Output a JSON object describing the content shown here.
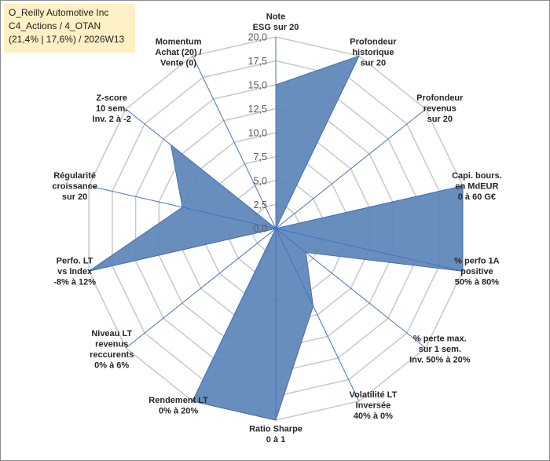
{
  "title_box": {
    "line1": "O_Reilly Automotive Inc",
    "line2": "C4_Actions / 4_OTAN",
    "line3": "(21,4% | 17,6%) / 2026W13"
  },
  "chart_data": {
    "type": "radar",
    "scale": {
      "min": 0,
      "max": 20,
      "step": 2.5
    },
    "ticks": [
      "0,0",
      "2,5",
      "5,0",
      "7,5",
      "10,0",
      "12,5",
      "15,0",
      "17,5",
      "20,0"
    ],
    "axes": [
      {
        "label": [
          "Note",
          "ESG sur 20"
        ],
        "value": 15
      },
      {
        "label": [
          "Profondeur",
          "historique",
          "sur 20"
        ],
        "value": 20
      },
      {
        "label": [
          "Profondeur",
          "revenus",
          "sur 20"
        ],
        "value": 0
      },
      {
        "label": [
          "Capi. bours.",
          "en MdEUR",
          "0 à 60 G€"
        ],
        "value": 20
      },
      {
        "label": [
          "% perfo 1A",
          "positive",
          "50% à 80%"
        ],
        "value": 20
      },
      {
        "label": [
          "% perte max.",
          "sur 1 sem.",
          "Inv. 50% à 20%"
        ],
        "value": 4
      },
      {
        "label": [
          "Volatilité LT",
          "Inversée",
          "40% à 0%"
        ],
        "value": 9
      },
      {
        "label": [
          "Ratio Sharpe",
          "0 à 1"
        ],
        "value": 20
      },
      {
        "label": [
          "Rendement LT",
          "0% à 20%"
        ],
        "value": 20
      },
      {
        "label": [
          "Niveau LT",
          "revenus",
          "reccurents",
          "0% à 6%"
        ],
        "value": 0
      },
      {
        "label": [
          "Perfo. LT",
          "vs Index",
          "-8% à 12%"
        ],
        "value": 20
      },
      {
        "label": [
          "Régularité",
          "croissance",
          "sur 20"
        ],
        "value": 10
      },
      {
        "label": [
          "Z-score",
          "10 sem.",
          "Inv. 2 à -2"
        ],
        "value": 14
      },
      {
        "label": [
          "Momentum",
          "Achat (20) /",
          "Vente (0)"
        ],
        "value": 0
      }
    ],
    "colors": {
      "fill": "#5b84b9",
      "stroke": "#4a6fa3",
      "grid": "#c8c8c8",
      "spoke": "#4472c4"
    },
    "grid": true,
    "legend": "none"
  }
}
